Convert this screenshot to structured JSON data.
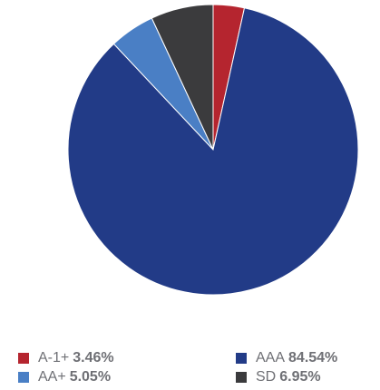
{
  "chart_data": {
    "type": "pie",
    "start_angle_deg": 0,
    "direction": "clockwise",
    "slices": [
      {
        "label": "A-1+",
        "value": 3.46,
        "value_label": "3.46%",
        "color": "#b5252f"
      },
      {
        "label": "AAA",
        "value": 84.54,
        "value_label": "84.54%",
        "color": "#223b87"
      },
      {
        "label": "AA+",
        "value": 5.05,
        "value_label": "5.05%",
        "color": "#4a7fc5"
      },
      {
        "label": "SD",
        "value": 6.95,
        "value_label": "6.95%",
        "color": "#3b3b3d"
      }
    ],
    "legend_position": "bottom",
    "title": "",
    "legend": [
      {
        "label": "A-1+",
        "value_label": "3.46%",
        "color": "#b5252f"
      },
      {
        "label": "AAA",
        "value_label": "84.54%",
        "color": "#223b87"
      },
      {
        "label": "AA+",
        "value_label": "5.05%",
        "color": "#4a7fc5"
      },
      {
        "label": "SD",
        "value_label": "6.95%",
        "color": "#3b3b3d"
      }
    ]
  }
}
